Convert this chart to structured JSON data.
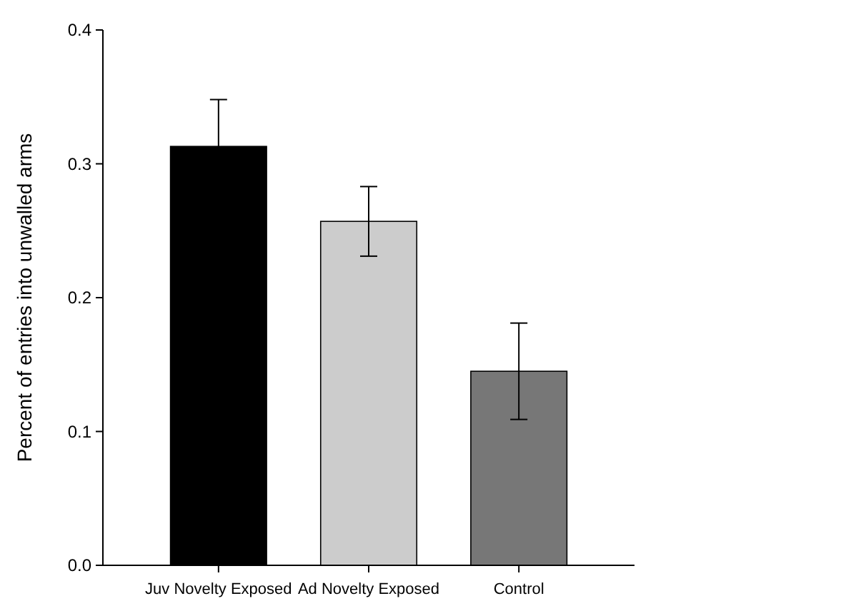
{
  "chart_data": {
    "type": "bar",
    "ylabel": "Percent of entries into unwalled arms",
    "categories": [
      "Juv Novelty Exposed",
      "Ad Novelty Exposed",
      "Control"
    ],
    "values": [
      0.313,
      0.257,
      0.145
    ],
    "colors": [
      "#000000",
      "#cccccc",
      "#777777"
    ],
    "errors": [
      0.035,
      0.026,
      0.036
    ],
    "ylim": [
      0,
      0.4
    ],
    "yticks": [
      {
        "value": 0,
        "label": "0.0"
      },
      {
        "value": 0.1,
        "label": "0.1"
      },
      {
        "value": 0.2,
        "label": "0.2"
      },
      {
        "value": 0.3,
        "label": "0.3"
      },
      {
        "value": 0.4,
        "label": "0.4"
      }
    ],
    "grid": false
  }
}
